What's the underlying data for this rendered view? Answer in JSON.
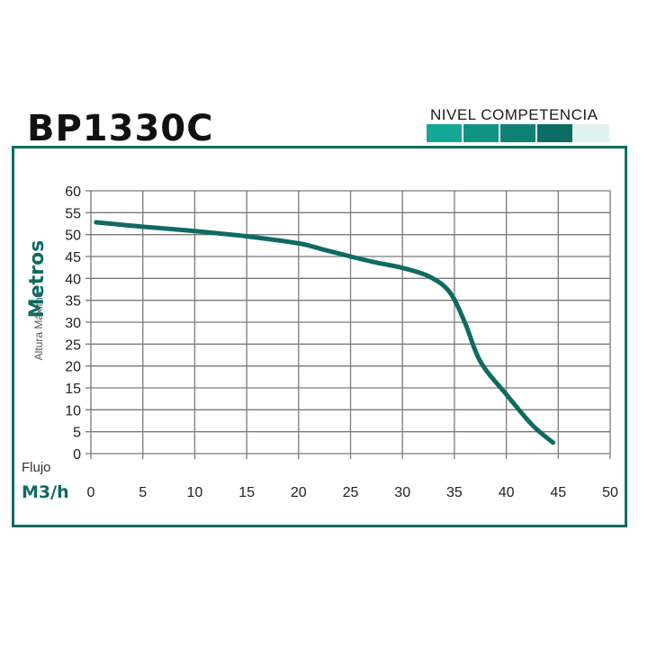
{
  "header": {
    "model": "BP1330C",
    "level_label": "NIVEL COMPETENCIA",
    "level_colors": [
      "#12a797",
      "#109385",
      "#0e8174",
      "#0b6d63",
      "#e0f2ef"
    ]
  },
  "colors": {
    "frame": "#0e6b63",
    "curve": "#0e6b63",
    "accent_text": "#0e6b63",
    "grid": "#7a7a7a"
  },
  "chart_data": {
    "type": "line",
    "ylabel_small": "Altura Máxima",
    "ylabel_big": "Metros",
    "xlabel_small": "Flujo",
    "xlabel_big": "M3/h",
    "xlim": [
      0,
      50
    ],
    "ylim": [
      0,
      60
    ],
    "x_ticks": [
      0,
      5,
      10,
      15,
      20,
      25,
      30,
      35,
      40,
      45,
      50
    ],
    "y_ticks": [
      0,
      5,
      10,
      15,
      20,
      25,
      30,
      35,
      40,
      45,
      50,
      55,
      60
    ],
    "grid": true,
    "series": [
      {
        "x": [
          0.5,
          5,
          10,
          15,
          20,
          22.5,
          25,
          27.5,
          30,
          32.5,
          34.5,
          36,
          37.5,
          40,
          42.5,
          44.5
        ],
        "y": [
          52.8,
          51.8,
          50.8,
          49.6,
          48,
          46.5,
          45,
          43.6,
          42.4,
          40.5,
          37,
          30,
          21,
          13.5,
          6.5,
          2.5
        ]
      }
    ]
  }
}
